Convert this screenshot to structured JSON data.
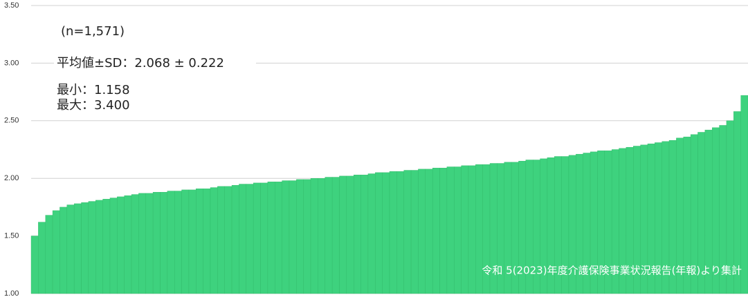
{
  "chart_data": {
    "type": "bar",
    "annotations": [
      "(n=1,571)",
      "平均値±SD：2.068 ± 0.222",
      "最小：1.158",
      "最大：3.400",
      "令和 5(2023)年度介護保険事業状況報告(年報)より集計"
    ],
    "values": [
      1.5,
      1.62,
      1.68,
      1.72,
      1.75,
      1.77,
      1.78,
      1.79,
      1.8,
      1.81,
      1.82,
      1.83,
      1.84,
      1.85,
      1.86,
      1.87,
      1.87,
      1.88,
      1.88,
      1.89,
      1.89,
      1.9,
      1.9,
      1.91,
      1.91,
      1.92,
      1.93,
      1.93,
      1.94,
      1.95,
      1.95,
      1.96,
      1.96,
      1.97,
      1.97,
      1.98,
      1.98,
      1.99,
      1.99,
      2.0,
      2.0,
      2.01,
      2.01,
      2.02,
      2.02,
      2.03,
      2.03,
      2.04,
      2.05,
      2.05,
      2.06,
      2.06,
      2.07,
      2.07,
      2.08,
      2.08,
      2.09,
      2.09,
      2.1,
      2.1,
      2.11,
      2.11,
      2.12,
      2.12,
      2.13,
      2.13,
      2.14,
      2.14,
      2.15,
      2.16,
      2.16,
      2.17,
      2.18,
      2.19,
      2.19,
      2.2,
      2.21,
      2.22,
      2.23,
      2.24,
      2.24,
      2.25,
      2.26,
      2.27,
      2.28,
      2.29,
      2.3,
      2.31,
      2.32,
      2.33,
      2.35,
      2.36,
      2.38,
      2.4,
      2.42,
      2.44,
      2.46,
      2.5,
      2.58,
      2.72
    ],
    "color": "#3ed27e",
    "ylim": [
      1,
      3.5
    ],
    "yticks": [
      {
        "value": 1,
        "label": "1.00"
      },
      {
        "value": 1.5,
        "label": "1.50"
      },
      {
        "value": 2,
        "label": "2.00"
      },
      {
        "value": 2.5,
        "label": "2.50"
      },
      {
        "value": 3,
        "label": "3.00"
      },
      {
        "value": 3.5,
        "label": "3.50"
      }
    ],
    "grid": true
  }
}
